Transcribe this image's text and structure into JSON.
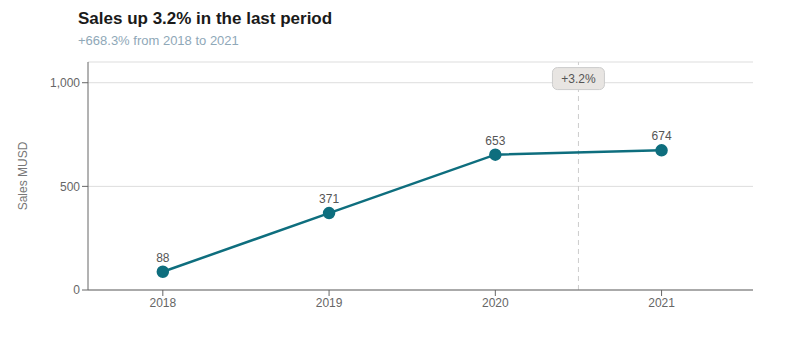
{
  "chart_data": {
    "type": "line",
    "title": "Sales up 3.2% in the last period",
    "subtitle": "+668.3% from 2018 to 2021",
    "x": [
      2018,
      2019,
      2020,
      2021
    ],
    "values": [
      88,
      371,
      653,
      674
    ],
    "color": "#0e6e7e",
    "marker": "circle",
    "xlim": [
      2017.55,
      2021.55
    ],
    "xticks": [
      2018,
      2019,
      2020,
      2021
    ],
    "ylim": [
      0,
      1100
    ],
    "yticks": [
      0,
      500,
      {
        "value": 1000,
        "label": "1,000"
      }
    ],
    "ylabel": "Sales MUSD",
    "grid": "y",
    "data_labels": true,
    "vlines": [
      {
        "x": 2020.5,
        "line_style": "dashed"
      }
    ],
    "annotations": [
      {
        "text": "+3.2%",
        "x": 2020.5,
        "y": 1020
      }
    ]
  }
}
